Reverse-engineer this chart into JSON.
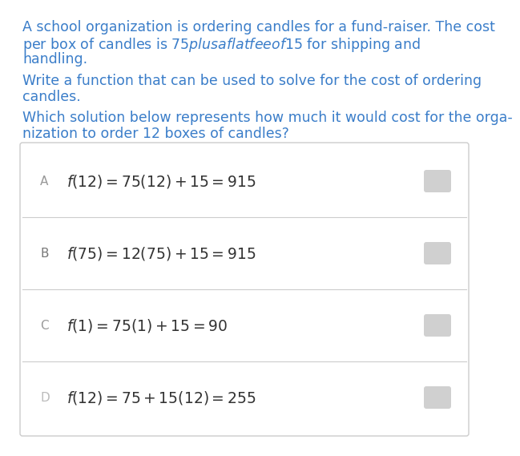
{
  "bg_color": "#ffffff",
  "text_color": "#3a7dc9",
  "para1_parts": [
    "A school organization is ordering candles for a fund-raiser. The cost\nper box of candles is ",
    "$75",
    " plus a flat fee of ",
    "$15",
    " for shipping and\nhandling."
  ],
  "para2": "Write a function that can be used to solve for the cost of ordering\ncandles.",
  "para3": "Which solution below represents how much it would cost for the orga-\nnization to order 12 boxes of candles?",
  "options": [
    {
      "label": "A",
      "formula": "$f(12) = 75(12) + 15 = 915$"
    },
    {
      "label": "B",
      "formula": "$f(75) = 12(75) + 15 = 915$"
    },
    {
      "label": "C",
      "formula": "$f(1) = 75(1) + 15 = 90$"
    },
    {
      "label": "D",
      "formula": "$f(12) = 75 + 15(12) = 255$"
    }
  ],
  "box_border": "#cccccc",
  "label_color_A": "#999999",
  "label_color_B": "#777777",
  "label_color_C": "#999999",
  "label_color_D": "#bbbbbb",
  "radio_color": "#d0d0d0",
  "font_size_para": 12.5,
  "font_size_option": 13.5
}
